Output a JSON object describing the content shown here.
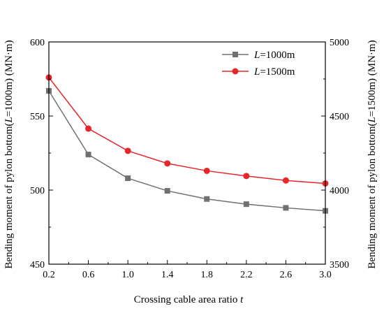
{
  "chart_data": {
    "type": "line",
    "xlabel": "Crossing cable area ratio ",
    "xlabel_var": "t",
    "ylabel_left": {
      "prefix": "Bending moment of pylon bottom(",
      "var": "L",
      "suffix": "=1000m) (MN·m)"
    },
    "ylabel_right": {
      "prefix": "Bending moment of pylon bottom(",
      "var": "L",
      "suffix": "=1500m) (MN·m)"
    },
    "xlim": [
      0.2,
      3.0
    ],
    "xticks": [
      "0.2",
      "0.6",
      "1.0",
      "1.4",
      "1.8",
      "2.2",
      "2.6",
      "3.0"
    ],
    "ylim_left": [
      450,
      600
    ],
    "yticks_left": [
      "450",
      "500",
      "550",
      "600"
    ],
    "ylim_right": [
      3500,
      5000
    ],
    "yticks_right": [
      "3500",
      "4000",
      "4500",
      "5000"
    ],
    "x": [
      0.2,
      0.6,
      1.0,
      1.4,
      1.8,
      2.2,
      2.6,
      3.0
    ],
    "series": [
      {
        "var": "L",
        "suffix": "=1000m",
        "axis": "left",
        "color": "#707070",
        "marker": "square",
        "values": [
          567,
          524,
          508,
          499.5,
          494,
          490.5,
          488,
          486
        ]
      },
      {
        "var": "L",
        "suffix": "=1500m",
        "axis": "right",
        "color": "#e5262a",
        "marker": "circle",
        "values": [
          4760,
          4415,
          4265,
          4180,
          4130,
          4095,
          4065,
          4045
        ]
      }
    ],
    "legend_position": "top-right",
    "grid": false
  }
}
